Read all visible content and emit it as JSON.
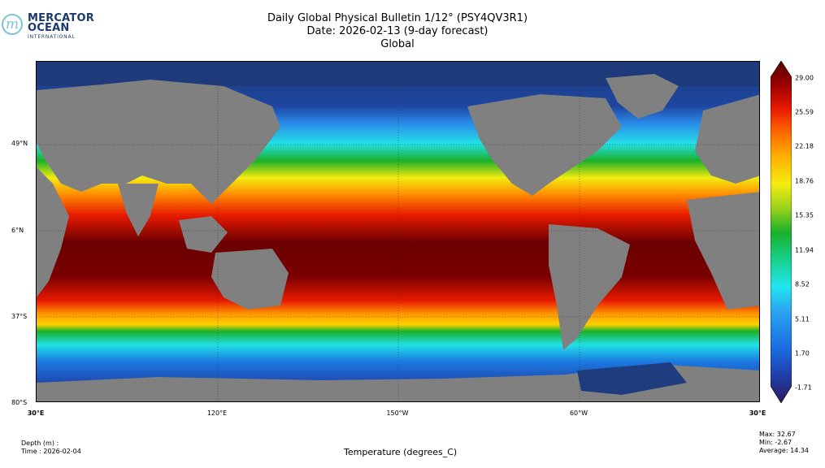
{
  "logo": {
    "line1": "MERCATOR",
    "line2": "OCEAN",
    "line3": "INTERNATIONAL"
  },
  "header": {
    "title": "Daily Global Physical Bulletin 1/12° (PSY4QV3R1)",
    "date": "Date: 2026-02-13 (9-day forecast)",
    "region": "Global"
  },
  "map": {
    "lat_labels": [
      "49°N",
      "6°N",
      "37°S",
      "80°S"
    ],
    "lon_labels": [
      "30°E",
      "120°E",
      "150°W",
      "60°W",
      "30°E"
    ],
    "colors": {
      "deep_cold": "#1a3a7a",
      "land": "#808080",
      "warm": "#6b0000"
    }
  },
  "colorbar": {
    "ticks": [
      "29.00",
      "25.59",
      "22.18",
      "18.76",
      "15.35",
      "11.94",
      "8.52",
      "5.11",
      "1.70",
      "-1.71"
    ],
    "stops": [
      "#2a1a5e",
      "#1f3fa8",
      "#1a6ce0",
      "#2aa5f0",
      "#21e6f0",
      "#17d08a",
      "#1bb02a",
      "#9ad21a",
      "#f3ec10",
      "#ffb000",
      "#ff6a00",
      "#e81a00",
      "#9b0000",
      "#5a0000"
    ]
  },
  "footer": {
    "depth": "Depth (m) :",
    "time": "Time : 2026-02-04",
    "variable": "Temperature (degrees_C)",
    "max": "Max: 32.67",
    "min": "Min: -2.67",
    "average": "Average: 14.34"
  }
}
